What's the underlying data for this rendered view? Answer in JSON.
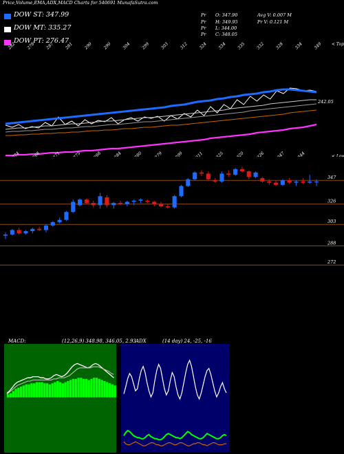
{
  "header": {
    "title": "Price,Volume,EMA,ADX,MACD Charts for 540691 MunafaSutra.com"
  },
  "legend": [
    {
      "label": "DOW ST: 347.99",
      "color": "#1e6cff"
    },
    {
      "label": "DOW MT: 335.27",
      "color": "#ffffff"
    },
    {
      "label": "DOW PT: 276.47",
      "color": "#ff33ff"
    }
  ],
  "stats": {
    "pr1": "Pr",
    "pv1": "O: 347.90",
    "pr2": "Pr",
    "pv2": "H: 349.95",
    "pr3": "Pr",
    "pv3": "L: 344.00",
    "pr4": "Pr",
    "pv4": "C: 348.05",
    "avg": "Avg V: 0.007 M",
    "prv": "Pr   V: 0.121 M"
  },
  "chart_data": [
    {
      "type": "line",
      "name": "EMA panel",
      "top_labels": [
        "282",
        "278",
        "287",
        "281",
        "290",
        "290",
        "304",
        "299",
        "303",
        "312",
        "324",
        "334",
        "335",
        "332",
        "328",
        "334",
        "349"
      ],
      "bottom_labels": [
        "274",
        "268",
        "271",
        "275",
        "288",
        "284",
        "280",
        "279",
        "299",
        "311",
        "325",
        "320",
        "326",
        "347",
        "344"
      ],
      "right_top_label": "< Tops",
      "right_bottom_label": "< Lows",
      "last_value_label": "242.05",
      "series": [
        {
          "color": "#ffffff",
          "values": [
            182,
            185,
            181,
            187,
            184,
            186,
            178,
            183,
            170,
            181,
            176,
            183,
            174,
            180,
            175,
            177,
            171,
            180,
            174,
            171,
            176,
            170,
            172,
            169,
            176,
            168,
            173,
            165,
            170,
            160,
            168,
            155,
            164,
            152,
            158,
            145,
            152,
            140,
            147,
            138,
            144,
            132,
            136,
            128,
            129,
            132,
            131,
            133
          ]
        },
        {
          "color": "#1e6cff",
          "values": [
            180,
            179,
            178,
            177,
            176,
            175,
            174,
            173,
            172,
            171,
            170,
            169,
            168,
            167,
            166,
            165,
            164,
            163,
            162,
            161,
            160,
            159,
            158,
            157,
            156,
            154,
            153,
            152,
            150,
            148,
            147,
            146,
            144,
            143,
            141,
            140,
            138,
            137,
            136,
            134,
            133,
            131,
            130,
            130,
            131,
            132,
            133,
            134
          ]
        },
        {
          "color": "#cccccc",
          "values": [
            188,
            187,
            186,
            186,
            185,
            184,
            183,
            183,
            182,
            181,
            180,
            180,
            179,
            178,
            177,
            176,
            176,
            175,
            174,
            173,
            172,
            171,
            171,
            170,
            169,
            168,
            167,
            166,
            165,
            164,
            163,
            162,
            161,
            160,
            158,
            157,
            156,
            155,
            154,
            153,
            151,
            150,
            149,
            148,
            147,
            146,
            145,
            145
          ]
        },
        {
          "color": "#999999",
          "values": [
            192,
            191,
            191,
            190,
            190,
            189,
            188,
            188,
            187,
            186,
            186,
            185,
            184,
            184,
            183,
            182,
            181,
            181,
            180,
            179,
            178,
            177,
            177,
            176,
            175,
            174,
            173,
            172,
            171,
            170,
            169,
            168,
            167,
            166,
            165,
            164,
            163,
            161,
            160,
            159,
            158,
            157,
            156,
            155,
            154,
            153,
            152,
            151
          ]
        },
        {
          "color": "#cc6600",
          "values": [
            197,
            197,
            196,
            196,
            195,
            195,
            194,
            194,
            193,
            193,
            192,
            192,
            191,
            190,
            190,
            189,
            189,
            188,
            187,
            187,
            186,
            185,
            185,
            184,
            183,
            182,
            182,
            181,
            180,
            179,
            178,
            177,
            176,
            175,
            174,
            173,
            172,
            171,
            170,
            169,
            168,
            167,
            166,
            164,
            163,
            162,
            161,
            160
          ]
        },
        {
          "color": "#ff33ff",
          "values": [
            226,
            226,
            225,
            225,
            224,
            224,
            223,
            222,
            222,
            221,
            221,
            220,
            219,
            219,
            218,
            217,
            216,
            216,
            215,
            214,
            213,
            212,
            211,
            210,
            209,
            208,
            207,
            206,
            205,
            204,
            203,
            201,
            200,
            199,
            198,
            197,
            196,
            195,
            193,
            192,
            191,
            190,
            189,
            187,
            186,
            185,
            183,
            181
          ]
        }
      ]
    },
    {
      "type": "candlestick",
      "name": "Price panel",
      "level_labels": [
        "347",
        "326",
        "303",
        "288",
        "272"
      ],
      "candles": [
        {
          "o": 300,
          "h": 303,
          "l": 297,
          "c": 301
        },
        {
          "o": 301,
          "h": 306,
          "l": 300,
          "c": 305
        },
        {
          "o": 305,
          "h": 307,
          "l": 301,
          "c": 302
        },
        {
          "o": 302,
          "h": 305,
          "l": 301,
          "c": 304
        },
        {
          "o": 304,
          "h": 307,
          "l": 302,
          "c": 306
        },
        {
          "o": 306,
          "h": 308,
          "l": 304,
          "c": 305
        },
        {
          "o": 305,
          "h": 310,
          "l": 303,
          "c": 309
        },
        {
          "o": 309,
          "h": 313,
          "l": 308,
          "c": 312
        },
        {
          "o": 312,
          "h": 316,
          "l": 311,
          "c": 314
        },
        {
          "o": 314,
          "h": 322,
          "l": 313,
          "c": 321
        },
        {
          "o": 321,
          "h": 332,
          "l": 320,
          "c": 330
        },
        {
          "o": 327,
          "h": 333,
          "l": 326,
          "c": 332
        },
        {
          "o": 332,
          "h": 333,
          "l": 328,
          "c": 329
        },
        {
          "o": 329,
          "h": 331,
          "l": 325,
          "c": 327
        },
        {
          "o": 327,
          "h": 338,
          "l": 324,
          "c": 335
        },
        {
          "o": 334,
          "h": 336,
          "l": 325,
          "c": 327
        },
        {
          "o": 327,
          "h": 330,
          "l": 324,
          "c": 329
        },
        {
          "o": 329,
          "h": 331,
          "l": 327,
          "c": 328
        },
        {
          "o": 328,
          "h": 331,
          "l": 326,
          "c": 330
        },
        {
          "o": 330,
          "h": 332,
          "l": 327,
          "c": 331
        },
        {
          "o": 331,
          "h": 333,
          "l": 329,
          "c": 332
        },
        {
          "o": 331,
          "h": 332,
          "l": 329,
          "c": 330
        },
        {
          "o": 330,
          "h": 331,
          "l": 326,
          "c": 328
        },
        {
          "o": 328,
          "h": 330,
          "l": 325,
          "c": 326
        },
        {
          "o": 326,
          "h": 328,
          "l": 324,
          "c": 325
        },
        {
          "o": 325,
          "h": 336,
          "l": 324,
          "c": 335
        },
        {
          "o": 335,
          "h": 345,
          "l": 334,
          "c": 344
        },
        {
          "o": 344,
          "h": 351,
          "l": 343,
          "c": 350
        },
        {
          "o": 350,
          "h": 357,
          "l": 349,
          "c": 356
        },
        {
          "o": 356,
          "h": 358,
          "l": 353,
          "c": 355
        },
        {
          "o": 355,
          "h": 357,
          "l": 349,
          "c": 350
        },
        {
          "o": 349,
          "h": 351,
          "l": 347,
          "c": 348
        },
        {
          "o": 348,
          "h": 357,
          "l": 347,
          "c": 355
        },
        {
          "o": 355,
          "h": 358,
          "l": 352,
          "c": 354
        },
        {
          "o": 354,
          "h": 360,
          "l": 353,
          "c": 359
        },
        {
          "o": 359,
          "h": 361,
          "l": 356,
          "c": 357
        },
        {
          "o": 357,
          "h": 358,
          "l": 350,
          "c": 352
        },
        {
          "o": 352,
          "h": 357,
          "l": 351,
          "c": 356
        },
        {
          "o": 351,
          "h": 352,
          "l": 347,
          "c": 348
        },
        {
          "o": 348,
          "h": 350,
          "l": 345,
          "c": 347
        },
        {
          "o": 347,
          "h": 349,
          "l": 344,
          "c": 345
        },
        {
          "o": 345,
          "h": 350,
          "l": 344,
          "c": 349
        },
        {
          "o": 349,
          "h": 351,
          "l": 346,
          "c": 347
        },
        {
          "o": 347,
          "h": 349,
          "l": 344,
          "c": 348
        },
        {
          "o": 348,
          "h": 351,
          "l": 346,
          "c": 347
        },
        {
          "o": 347,
          "h": 354,
          "l": 346,
          "c": 348
        },
        {
          "o": 347.9,
          "h": 349.95,
          "l": 344,
          "c": 348.05
        }
      ],
      "ylim": [
        265,
        365
      ]
    },
    {
      "type": "bar",
      "name": "MACD panel",
      "title": "MACD",
      "params": "(12,26,9) 348.98, 346.05, 2.93",
      "histogram": [
        3,
        4,
        6,
        8,
        9,
        10,
        11,
        12,
        12,
        13,
        13,
        14,
        14,
        14,
        13,
        13,
        12,
        13,
        14,
        15,
        14,
        13,
        14,
        15,
        16,
        17,
        17,
        18,
        18,
        17,
        17,
        16,
        17,
        18,
        18,
        17,
        16,
        15,
        14,
        13,
        12,
        11
      ],
      "macd_line": [
        4,
        6,
        9,
        12,
        14,
        15,
        16,
        17,
        18,
        18,
        19,
        19,
        19,
        18,
        18,
        17,
        17,
        18,
        20,
        21,
        20,
        19,
        20,
        22,
        25,
        28,
        30,
        31,
        30,
        29,
        28,
        27,
        28,
        30,
        31,
        30,
        28,
        26,
        24,
        22,
        20,
        18
      ],
      "signal_line": [
        3,
        5,
        7,
        9,
        11,
        12,
        13,
        14,
        15,
        15,
        16,
        16,
        16,
        16,
        16,
        16,
        16,
        16,
        17,
        17,
        18,
        18,
        18,
        19,
        20,
        22,
        24,
        26,
        27,
        27,
        27,
        27,
        27,
        28,
        28,
        28,
        27,
        26,
        25,
        24,
        22,
        21
      ],
      "ylim": [
        0,
        40
      ]
    },
    {
      "type": "line",
      "name": "ADX panel",
      "title": "ADX",
      "params": "(14 day) 24, -25, -16",
      "series": [
        {
          "color": "#ffffff",
          "values": [
            55,
            62,
            70,
            75,
            72,
            65,
            58,
            60,
            70,
            78,
            82,
            76,
            66,
            58,
            52,
            56,
            68,
            78,
            84,
            80,
            70,
            60,
            54,
            58,
            68,
            76,
            72,
            62,
            54,
            50,
            56,
            66,
            76,
            84,
            88,
            82,
            72,
            62,
            54,
            50,
            56,
            64,
            72,
            78,
            80,
            74,
            66,
            58,
            52,
            56,
            62,
            66,
            60,
            56
          ]
        },
        {
          "color": "#00ff00",
          "values": [
            14,
            17,
            19,
            18,
            16,
            14,
            13,
            12,
            12,
            11,
            11,
            12,
            14,
            15,
            13,
            12,
            11,
            11,
            10,
            10,
            11,
            13,
            15,
            16,
            15,
            14,
            13,
            12,
            12,
            11,
            12,
            14,
            16,
            18,
            17,
            15,
            14,
            13,
            12,
            11,
            11,
            12,
            14,
            16,
            15,
            14,
            13,
            12,
            11,
            11,
            12,
            14,
            15,
            14
          ]
        },
        {
          "color": "#cc6600",
          "values": [
            8,
            6,
            5,
            5,
            6,
            7,
            8,
            7,
            6,
            5,
            4,
            4,
            5,
            6,
            7,
            7,
            6,
            5,
            5,
            4,
            4,
            5,
            6,
            7,
            7,
            6,
            5,
            5,
            6,
            7,
            7,
            6,
            5,
            4,
            4,
            5,
            6,
            6,
            7,
            7,
            6,
            5,
            5,
            4,
            5,
            6,
            7,
            7,
            6,
            5,
            5,
            5,
            6,
            6
          ]
        }
      ],
      "ylim": [
        0,
        100
      ]
    }
  ]
}
